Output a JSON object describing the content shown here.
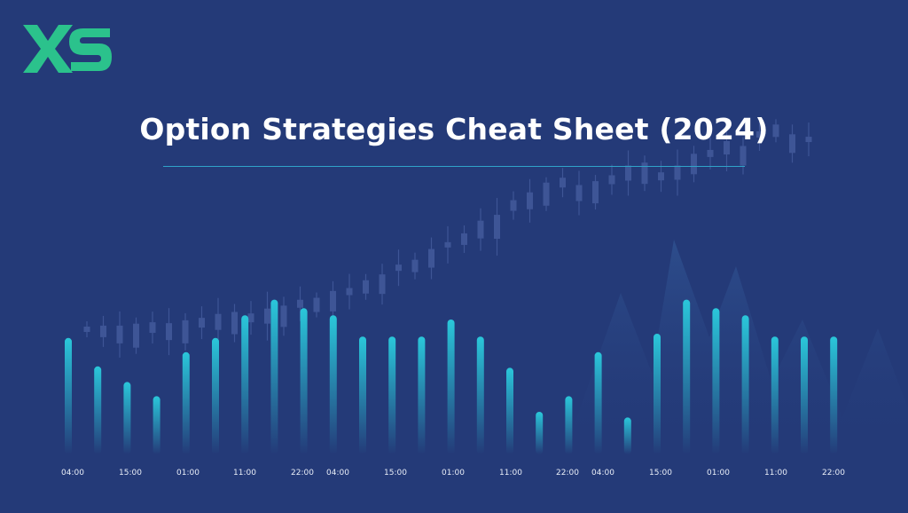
{
  "brand": {
    "name": "XS",
    "color": "#2bc28c"
  },
  "title": "Option Strategies Cheat Sheet (2024)",
  "colors": {
    "background": "#243a78",
    "bar_top": "#2ac7da",
    "bar_bottom": "#243a78",
    "rule": "#2fa3c9",
    "candles": "#3e5596"
  },
  "x_ticks": [
    "04:00",
    "15:00",
    "01:00",
    "11:00",
    "22:00",
    "04:00",
    "15:00",
    "01:00",
    "11:00",
    "22:00",
    "04:00",
    "15:00",
    "01:00",
    "11:00",
    "22:00"
  ],
  "bar_heights": [
    0.82,
    0.62,
    0.51,
    0.41,
    0.72,
    0.82,
    0.98,
    1.09,
    1.03,
    0.98,
    0.83,
    0.83,
    0.83,
    0.95,
    0.83,
    0.61,
    0.3,
    0.41,
    0.72,
    0.26,
    0.85,
    1.09,
    1.03,
    0.98,
    0.83,
    0.83,
    0.83
  ]
}
